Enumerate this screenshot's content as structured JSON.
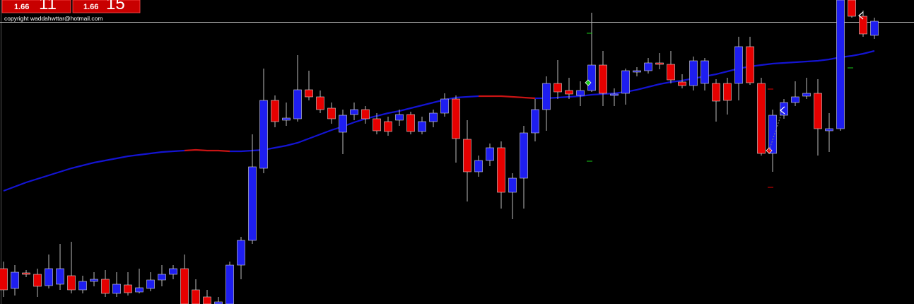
{
  "chart_data": {
    "type": "candlestick",
    "ylim": [
      0,
      430
    ],
    "up_color": "#1e1ef0",
    "down_color": "#e60000",
    "open": [
      50,
      22,
      44,
      42,
      26,
      28,
      40,
      20,
      32,
      35,
      15,
      27,
      17,
      22,
      34,
      42,
      50,
      20,
      10,
      0,
      0,
      55,
      90,
      192,
      288,
      260,
      262,
      303,
      293,
      277,
      243,
      268,
      275,
      262,
      258,
      260,
      268,
      244,
      258,
      270,
      290,
      233,
      187,
      203,
      221,
      158,
      178,
      242,
      275,
      312,
      302,
      295,
      302,
      338,
      295,
      298,
      328,
      330,
      341,
      339,
      314,
      309,
      312,
      312,
      312,
      312,
      364,
      312,
      213,
      267,
      285,
      294,
      298,
      245,
      248,
      430,
      407,
      380
    ],
    "high": [
      60,
      55,
      48,
      50,
      70,
      85,
      88,
      40,
      45,
      48,
      45,
      45,
      50,
      45,
      55,
      55,
      70,
      35,
      20,
      10,
      60,
      95,
      240,
      333,
      295,
      285,
      352,
      330,
      302,
      285,
      275,
      285,
      280,
      270,
      265,
      275,
      272,
      265,
      275,
      298,
      295,
      260,
      210,
      227,
      230,
      185,
      252,
      290,
      322,
      345,
      320,
      315,
      412,
      358,
      305,
      333,
      335,
      348,
      355,
      358,
      325,
      350,
      348,
      318,
      320,
      378,
      378,
      320,
      275,
      290,
      315,
      320,
      318,
      270,
      430,
      430,
      415,
      405
    ],
    "low": [
      10,
      12,
      38,
      10,
      22,
      20,
      15,
      15,
      25,
      10,
      10,
      12,
      15,
      18,
      25,
      35,
      0,
      0,
      0,
      0,
      0,
      35,
      85,
      185,
      250,
      252,
      258,
      288,
      270,
      255,
      212,
      260,
      255,
      240,
      238,
      252,
      240,
      240,
      250,
      265,
      200,
      145,
      180,
      195,
      135,
      120,
      135,
      230,
      245,
      290,
      290,
      280,
      300,
      280,
      280,
      282,
      322,
      326,
      332,
      312,
      305,
      302,
      302,
      258,
      268,
      288,
      310,
      210,
      187,
      262,
      280,
      290,
      210,
      215,
      245,
      405,
      378,
      375
    ],
    "close": [
      20,
      45,
      42,
      25,
      50,
      50,
      20,
      32,
      35,
      15,
      28,
      16,
      23,
      34,
      42,
      50,
      0,
      0,
      0,
      3,
      55,
      90,
      194,
      288,
      258,
      263,
      303,
      293,
      275,
      262,
      267,
      275,
      262,
      245,
      244,
      268,
      244,
      258,
      270,
      290,
      234,
      187,
      203,
      221,
      158,
      178,
      242,
      275,
      312,
      300,
      297,
      302,
      338,
      298,
      297,
      330,
      330,
      341,
      339,
      317,
      309,
      344,
      344,
      287,
      288,
      364,
      313,
      213,
      267,
      285,
      293,
      298,
      248,
      248,
      430,
      407,
      382,
      400
    ],
    "ma": {
      "values": [
        160,
        166,
        172,
        177,
        182,
        187,
        192,
        196,
        200,
        203,
        206,
        209,
        211,
        213,
        215,
        216,
        217,
        218,
        217,
        217,
        216,
        216,
        217,
        218,
        221,
        224,
        228,
        234,
        240,
        246,
        251,
        257,
        262,
        266,
        270,
        273,
        277,
        281,
        285,
        289,
        292,
        293,
        294,
        294,
        294,
        293,
        292,
        291,
        291,
        292,
        293,
        294,
        296,
        297,
        298,
        300,
        303,
        307,
        311,
        314,
        316,
        319,
        322,
        325,
        329,
        333,
        336,
        338,
        340,
        341,
        342,
        343,
        344,
        346,
        349,
        351,
        354,
        358
      ],
      "colors": [
        "#1414d2",
        "#1414d2",
        "#1414d2",
        "#1414d2",
        "#1414d2",
        "#1414d2",
        "#1414d2",
        "#1414d2",
        "#1414d2",
        "#1414d2",
        "#1414d2",
        "#1414d2",
        "#1414d2",
        "#1414d2",
        "#1414d2",
        "#1414d2",
        "#1414d2",
        "#c81414",
        "#c81414",
        "#c81414",
        "#c81414",
        "#1414d2",
        "#1414d2",
        "#1414d2",
        "#1414d2",
        "#1414d2",
        "#1414d2",
        "#1414d2",
        "#1414d2",
        "#1414d2",
        "#1414d2",
        "#1414d2",
        "#1414d2",
        "#1414d2",
        "#1414d2",
        "#1414d2",
        "#1414d2",
        "#1414d2",
        "#1414d2",
        "#1414d2",
        "#1414d2",
        "#1414d2",
        "#1414d2",
        "#c81414",
        "#c81414",
        "#c81414",
        "#c81414",
        "#c81414",
        "#1414d2",
        "#1414d2",
        "#1414d2",
        "#1414d2",
        "#1414d2",
        "#1414d2",
        "#1414d2",
        "#1414d2",
        "#1414d2",
        "#1414d2",
        "#1414d2",
        "#1414d2",
        "#1414d2",
        "#1414d2",
        "#1414d2",
        "#1414d2",
        "#1414d2",
        "#1414d2",
        "#1414d2",
        "#1414d2",
        "#1414d2",
        "#1414d2",
        "#1414d2",
        "#1414d2",
        "#1414d2",
        "#1414d2",
        "#1414d2",
        "#1414d2",
        "#1414d2",
        "#1414d2"
      ]
    },
    "badges": [
      {
        "price": "1.66",
        "count": "11"
      },
      {
        "price": "1.66",
        "count": "15"
      }
    ],
    "copyright": "copyright waddahwttar@hotmail.com"
  }
}
